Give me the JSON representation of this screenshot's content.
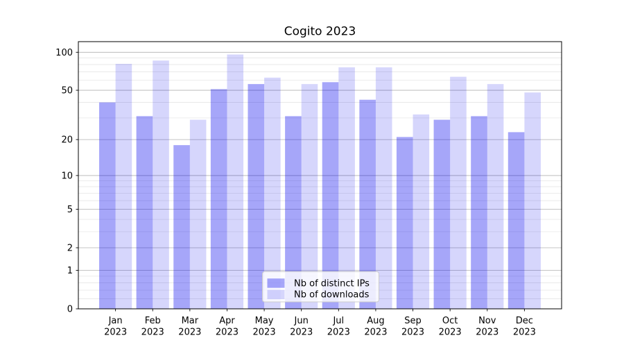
{
  "chart_data": {
    "type": "bar",
    "title": "Cogito 2023",
    "categories": [
      "Jan 2023",
      "Feb 2023",
      "Mar 2023",
      "Apr 2023",
      "May 2023",
      "Jun 2023",
      "Jul 2023",
      "Aug 2023",
      "Sep 2023",
      "Oct 2023",
      "Nov 2023",
      "Dec 2023"
    ],
    "series": [
      {
        "name": "Nb of distinct IPs",
        "color": "#0000ee",
        "fill_opacity": 0.35,
        "values": [
          40,
          31,
          18,
          51,
          56,
          31,
          58,
          42,
          21,
          29,
          31,
          23
        ]
      },
      {
        "name": "Nb of downloads",
        "color": "#0000ee",
        "fill_opacity": 0.16,
        "values": [
          81,
          86,
          29,
          96,
          63,
          56,
          76,
          76,
          32,
          64,
          56,
          48
        ]
      }
    ],
    "yscale": "log1p",
    "yticks": [
      0,
      1,
      2,
      5,
      10,
      20,
      50,
      100
    ],
    "y_minor_ticks": [
      0.2,
      0.4,
      0.6,
      0.8,
      3,
      4,
      6,
      7,
      8,
      9,
      30,
      40,
      60,
      70,
      80,
      90
    ],
    "ylim": [
      0,
      121
    ],
    "xlabel": "",
    "ylabel": "",
    "grid": "both",
    "legend": {
      "position": "lower center",
      "labels": [
        "Nb of distinct IPs",
        "Nb of downloads"
      ]
    },
    "colors": {
      "grid_major": "#b0b0b0",
      "grid_minor": "#e2e2e2",
      "frame": "#000000",
      "background": "#ffffff"
    }
  }
}
